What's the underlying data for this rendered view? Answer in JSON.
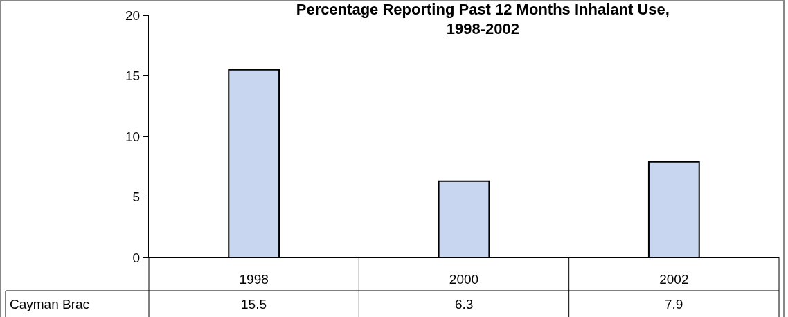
{
  "chart_data": {
    "type": "bar",
    "title": "Percentage Reporting Past 12 Months Inhalant Use,\n1998-2002",
    "categories": [
      "1998",
      "2000",
      "2002"
    ],
    "series": [
      {
        "name": "Cayman Brac",
        "color": "#c8d6f0",
        "values": [
          15.5,
          6.3,
          7.9
        ]
      }
    ],
    "ylim": [
      0,
      20
    ],
    "yticks": [
      0,
      5,
      10,
      15,
      20
    ],
    "grid": false,
    "legend": "bottom left",
    "data_labels": true
  }
}
